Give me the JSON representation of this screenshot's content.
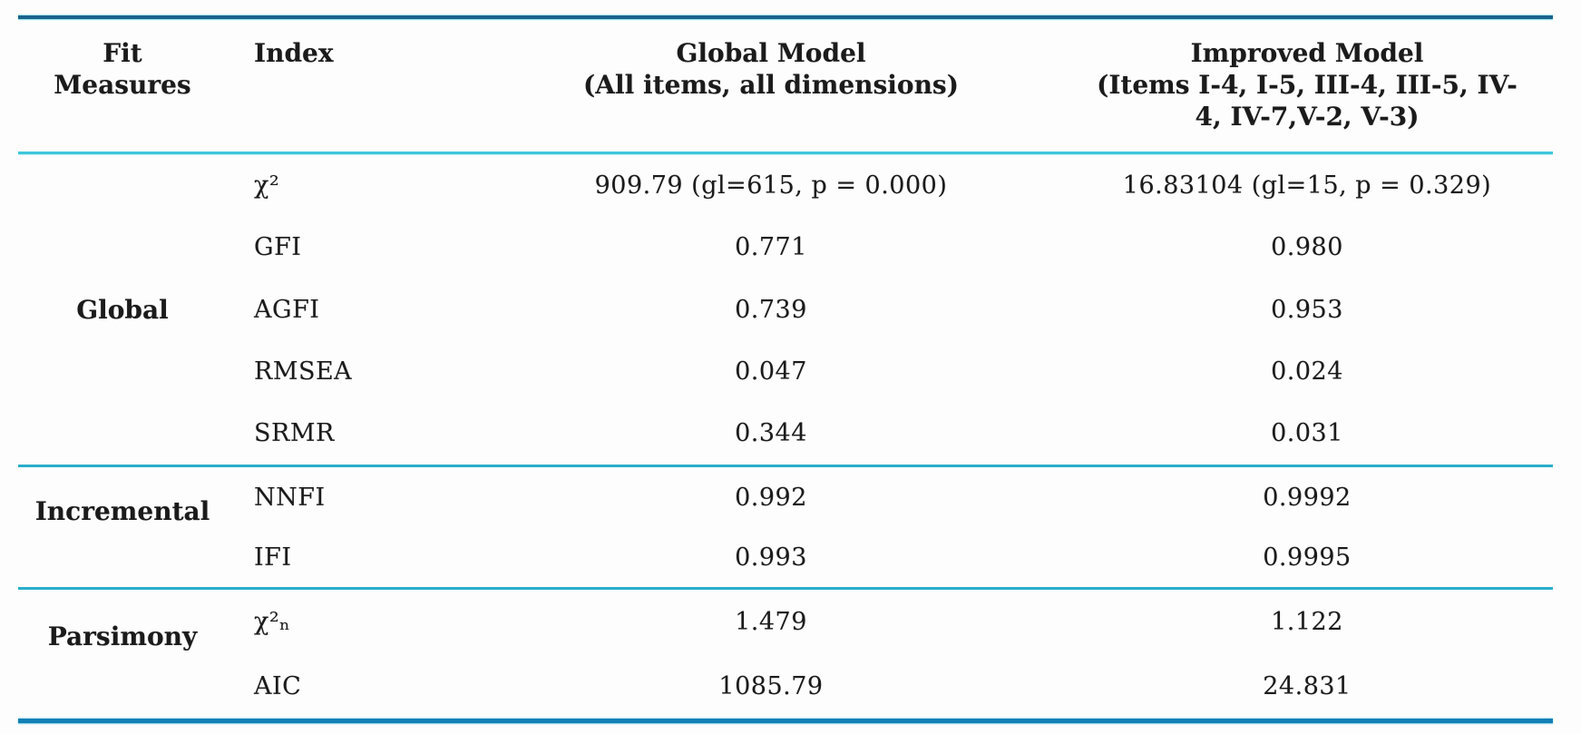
{
  "table": {
    "headers": {
      "fit_measures": "Fit Measures",
      "index": "Index",
      "global_model_title": "Global Model",
      "global_model_subtitle": "(All items, all dimensions)",
      "improved_model_title": "Improved Model",
      "improved_model_subtitle": "(Items I-4, I-5, III-4, III-5, IV-4, IV-7,V-2, V-3)"
    },
    "sections": [
      {
        "label": "Global",
        "rows": [
          {
            "index": "χ²",
            "global": "909.79 (gl=615, p = 0.000)",
            "improved": "16.83104 (gl=15, p = 0.329)"
          },
          {
            "index": "GFI",
            "global": "0.771",
            "improved": "0.980"
          },
          {
            "index": "AGFI",
            "global": "0.739",
            "improved": "0.953"
          },
          {
            "index": "RMSEA",
            "global": "0.047",
            "improved": "0.024"
          },
          {
            "index": "SRMR",
            "global": "0.344",
            "improved": "0.031"
          }
        ]
      },
      {
        "label": "Incremental",
        "rows": [
          {
            "index": "NNFI",
            "global": "0.992",
            "improved": "0.9992"
          },
          {
            "index": "IFI",
            "global": "0.993",
            "improved": "0.9995"
          }
        ]
      },
      {
        "label": "Parsimony",
        "rows": [
          {
            "index": "χ²ₙ",
            "global": "1.479",
            "improved": "1.122"
          },
          {
            "index": "AIC",
            "global": "1085.79",
            "improved": "24.831"
          }
        ]
      }
    ]
  },
  "colors": {
    "top_rule": "#1a648e",
    "header_rule": "#3ec6da",
    "section_rule": "#2aadca",
    "bottom_rule": "#137fb4",
    "text": "#1b1b1b"
  }
}
